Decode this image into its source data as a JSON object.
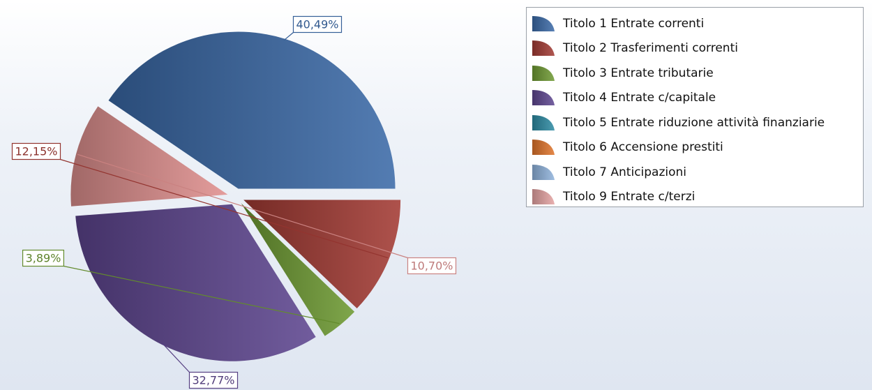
{
  "chart_data": {
    "type": "pie",
    "slices": [
      {
        "name": "Titolo 1 Entrate correnti",
        "value": 40.49,
        "label": "40,49%",
        "color": "#3b6aa8"
      },
      {
        "name": "Titolo 9 Entrate c/terzi",
        "value": 10.7,
        "label": "10,70%",
        "color": "#e0908f"
      },
      {
        "name": "Titolo 4 Entrate c/capitale",
        "value": 32.77,
        "label": "32,77%",
        "color": "#5e4690"
      },
      {
        "name": "Titolo 3 Entrate tributarie",
        "value": 3.89,
        "label": "3,89%",
        "color": "#6e9a32"
      },
      {
        "name": "Titolo 2 Trasferimenti correnti",
        "value": 12.15,
        "label": "12,15%",
        "color": "#a33a34"
      }
    ],
    "legend": {
      "position": "top-right",
      "items": [
        {
          "label": "Titolo 1 Entrate correnti",
          "color": "#3b6aa8"
        },
        {
          "label": "Titolo 2 Trasferimenti correnti",
          "color": "#a33a34"
        },
        {
          "label": "Titolo 3 Entrate tributarie",
          "color": "#6e9a32"
        },
        {
          "label": "Titolo 4 Entrate c/capitale",
          "color": "#5e4690"
        },
        {
          "label": "Titolo 5 Entrate riduzione attività finanziarie",
          "color": "#2c8aa3"
        },
        {
          "label": "Titolo 6 Accensione prestiti",
          "color": "#e0742a"
        },
        {
          "label": "Titolo 7 Anticipazioni",
          "color": "#8fb3dc"
        },
        {
          "label": "Titolo 9 Entrate c/terzi",
          "color": "#e5a3a2"
        }
      ]
    }
  }
}
